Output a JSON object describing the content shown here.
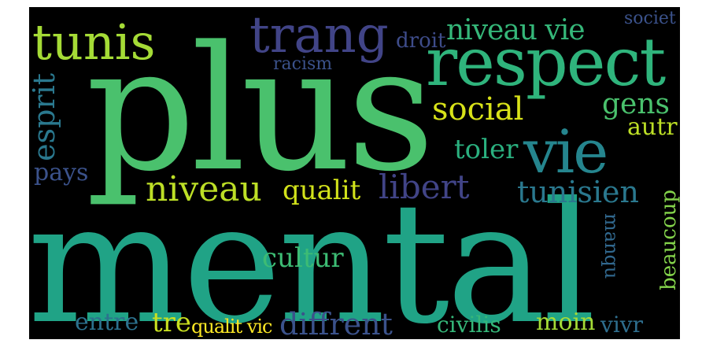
{
  "wordcloud": {
    "words": [
      {
        "text": "mental",
        "color": "#20a386"
      },
      {
        "text": "plus",
        "color": "#4ac16d"
      },
      {
        "text": "respect",
        "color": "#2fb47c"
      },
      {
        "text": "trang",
        "color": "#414487"
      },
      {
        "text": "tunis",
        "color": "#a5db36"
      },
      {
        "text": "vie",
        "color": "#25858e"
      },
      {
        "text": "niveau",
        "color": "#bddf26"
      },
      {
        "text": "social",
        "color": "#d8e219"
      },
      {
        "text": "niveau vie",
        "color": "#35b779"
      },
      {
        "text": "gens",
        "color": "#4ac16d"
      },
      {
        "text": "droit",
        "color": "#3e4c8a"
      },
      {
        "text": "societ",
        "color": "#3b528b"
      },
      {
        "text": "racism",
        "color": "#3b528b"
      },
      {
        "text": "esprit",
        "color": "#2a788e"
      },
      {
        "text": "pays",
        "color": "#3b528b"
      },
      {
        "text": "qualit",
        "color": "#d2e21b"
      },
      {
        "text": "libert",
        "color": "#414487"
      },
      {
        "text": "tunisien",
        "color": "#2a788e"
      },
      {
        "text": "toler",
        "color": "#2ab07f"
      },
      {
        "text": "autr",
        "color": "#bddf26"
      },
      {
        "text": "cultur",
        "color": "#3dbc74"
      },
      {
        "text": "manqu",
        "color": "#31688e"
      },
      {
        "text": "beaucoup",
        "color": "#84d44b"
      },
      {
        "text": "entre",
        "color": "#2c728e"
      },
      {
        "text": "tre",
        "color": "#c8e020"
      },
      {
        "text": "qualit vic",
        "color": "#fde725"
      },
      {
        "text": "diffrent",
        "color": "#3b528b"
      },
      {
        "text": "civilis",
        "color": "#35b779"
      },
      {
        "text": "moin",
        "color": "#a5db36"
      },
      {
        "text": "vivr",
        "color": "#2e6e8e"
      }
    ]
  }
}
